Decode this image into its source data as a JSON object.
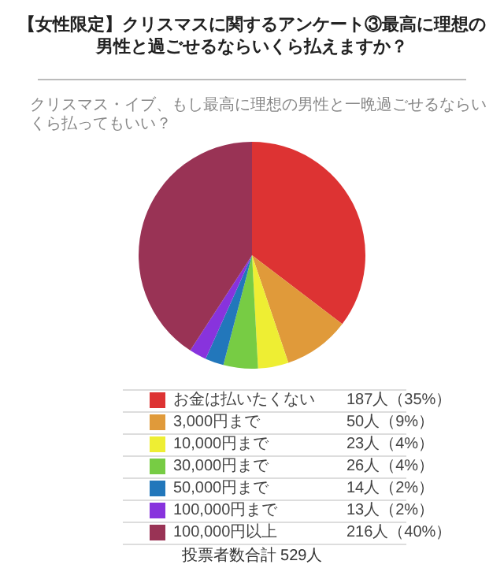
{
  "chart_data": {
    "type": "pie",
    "title": "【女性限定】クリスマスに関するアンケート③最高に理想の男性と過ごせるならいくら払えますか？",
    "subtitle": "クリスマス・イブ、もし最高に理想の男性と一晩過ごせるならいくら払ってもいい？",
    "categories": [
      "お金は払いたくない",
      "3,000円まで",
      "10,000円まで",
      "30,000円まで",
      "50,000円まで",
      "100,000円まで",
      "100,000円以上"
    ],
    "values": [
      187,
      50,
      23,
      26,
      14,
      13,
      216
    ],
    "value_labels": [
      "187人（35%）",
      "50人（9%）",
      "23人（4%）",
      "26人（4%）",
      "14人（2%）",
      "13人（2%）",
      "216人（40%）"
    ],
    "colors": [
      "#dd3333",
      "#e09a3a",
      "#eeee33",
      "#77cc44",
      "#2277bb",
      "#8833dd",
      "#993355"
    ],
    "legend": "bottom",
    "annotations": [
      "投票者数合計 529人"
    ]
  }
}
